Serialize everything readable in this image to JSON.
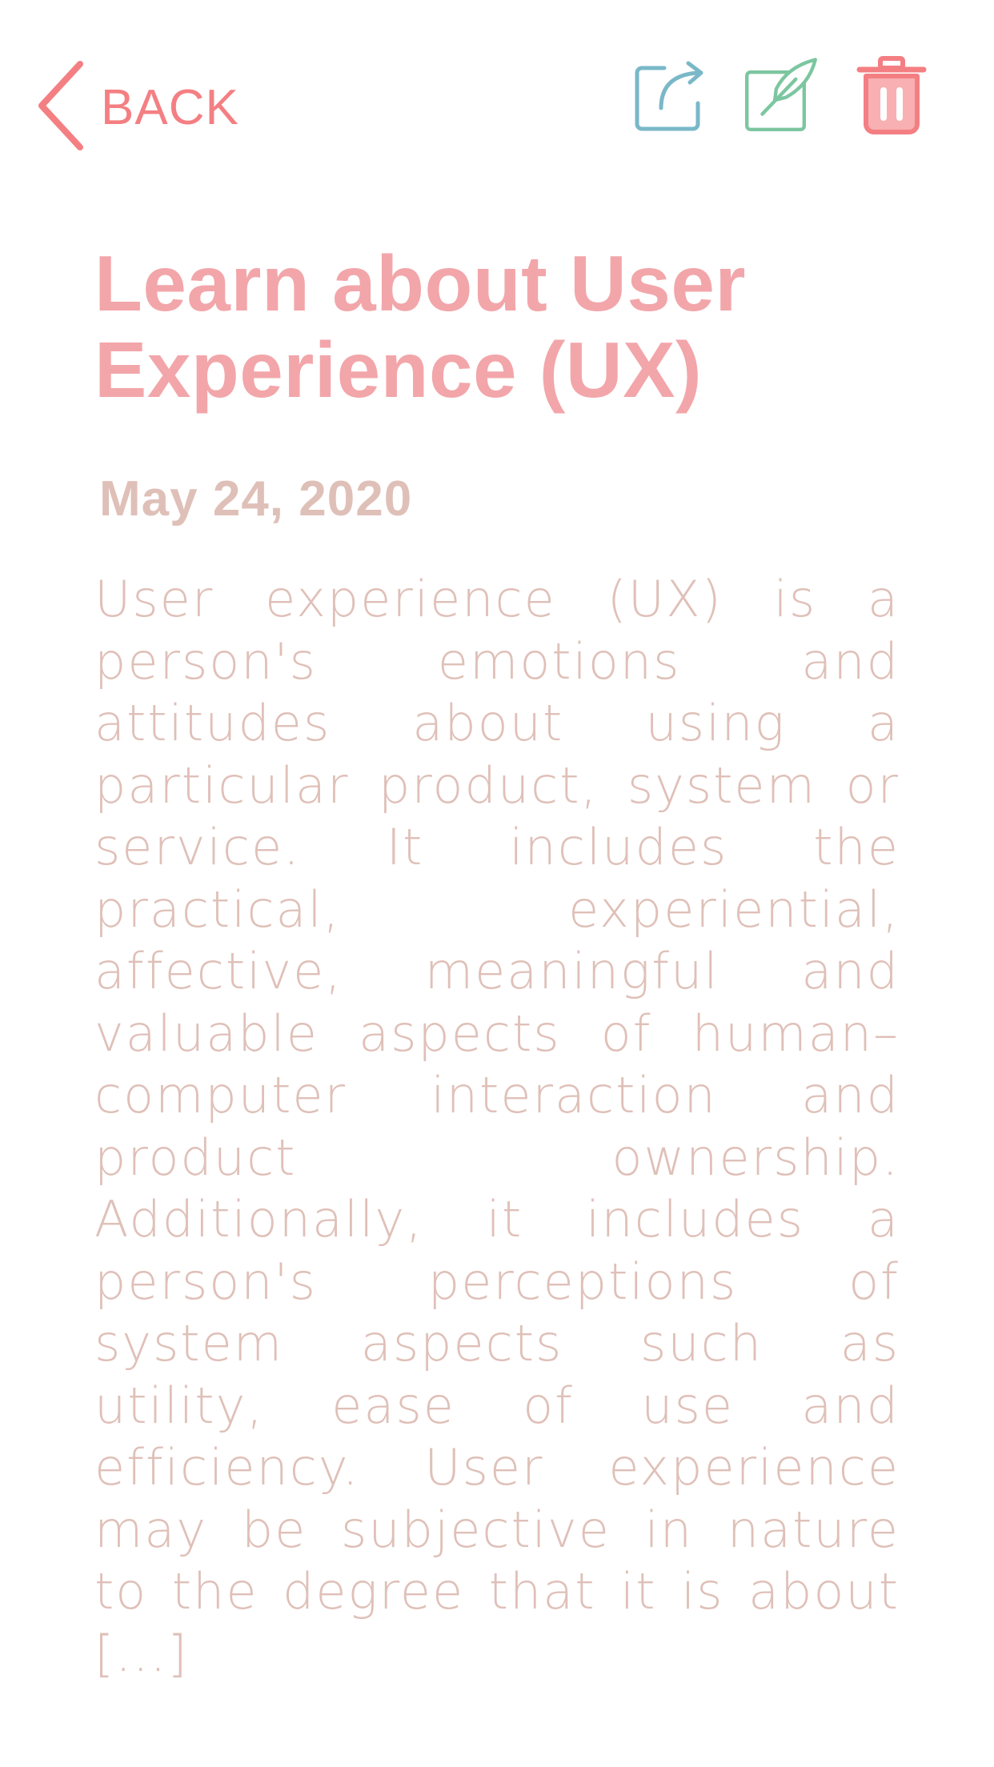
{
  "header": {
    "back_label": "BACK",
    "actions": [
      {
        "name": "share",
        "icon": "share-icon",
        "color": "#7ab8c8"
      },
      {
        "name": "edit",
        "icon": "edit-quill-icon",
        "color": "#7cc6a0"
      },
      {
        "name": "delete",
        "icon": "trash-icon",
        "color": "#f47f83"
      }
    ]
  },
  "note": {
    "title": "Learn about User Experience (UX)",
    "date": "May 24, 2020",
    "body": "User experience (UX) is a person's emotions and attitudes about using a particular product, system or service. It includes the practical, experiential, affective, meaningful and valuable aspects of human–computer interaction and product ownership. Additionally, it includes a person's perceptions of system aspects such as utility, ease of use and efficiency. User experience may be subjective in nature to the degree that it is about [...]"
  },
  "colors": {
    "accent": "#f47f83",
    "title": "#f2a6aa",
    "text": "#dfc0b8",
    "share": "#7ab8c8",
    "edit": "#7cc6a0"
  }
}
